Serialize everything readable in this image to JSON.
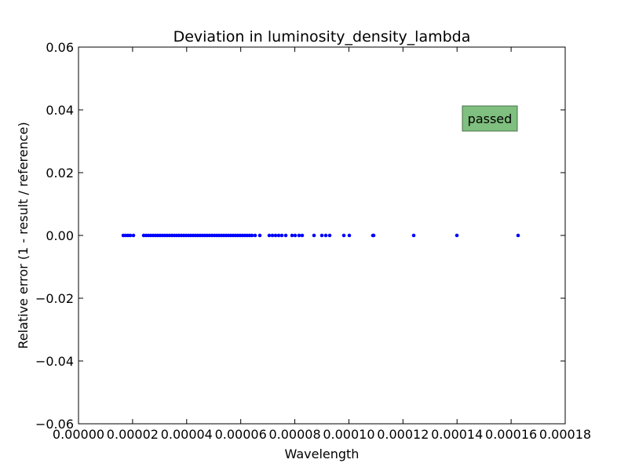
{
  "chart_data": {
    "type": "scatter",
    "title": "Deviation in luminosity_density_lambda",
    "xlabel": "Wavelength",
    "ylabel": "Relative error (1 - result / reference)",
    "xlim": [
      0,
      0.00018
    ],
    "ylim": [
      -0.06,
      0.06
    ],
    "xticks": [
      "0.00000",
      "0.00002",
      "0.00004",
      "0.00006",
      "0.00008",
      "0.00010",
      "0.00012",
      "0.00014",
      "0.00016",
      "0.00018"
    ],
    "xtick_values": [
      0,
      2e-05,
      4e-05,
      6e-05,
      8e-05,
      0.0001,
      0.00012,
      0.00014,
      0.00016,
      0.00018
    ],
    "yticks": [
      "−0.06",
      "−0.04",
      "−0.02",
      "0.00",
      "0.02",
      "0.04",
      "0.06"
    ],
    "ytick_values": [
      -0.06,
      -0.04,
      -0.02,
      0,
      0.02,
      0.04,
      0.06
    ],
    "grid": false,
    "marker_color": "#0000ff",
    "annotation": {
      "text": "passed",
      "color": "#7fbf7f",
      "x": 0.000148,
      "y": 0.037
    },
    "x": [
      1.655e-05,
      1.742e-05,
      1.829e-05,
      1.916e-05,
      2.032e-05,
      2.41e-05,
      2.497e-05,
      2.584e-05,
      2.671e-05,
      2.758e-05,
      2.845e-05,
      2.932e-05,
      3.019e-05,
      3.106e-05,
      3.194e-05,
      3.281e-05,
      3.368e-05,
      3.455e-05,
      3.542e-05,
      3.629e-05,
      3.716e-05,
      3.803e-05,
      3.89e-05,
      3.977e-05,
      4.065e-05,
      4.152e-05,
      4.239e-05,
      4.326e-05,
      4.413e-05,
      4.5e-05,
      4.587e-05,
      4.674e-05,
      4.761e-05,
      4.848e-05,
      4.935e-05,
      5.023e-05,
      5.11e-05,
      5.197e-05,
      5.284e-05,
      5.371e-05,
      5.458e-05,
      5.545e-05,
      5.632e-05,
      5.719e-05,
      5.806e-05,
      5.894e-05,
      5.981e-05,
      6.068e-05,
      6.155e-05,
      6.242e-05,
      6.329e-05,
      6.416e-05,
      6.532e-05,
      6.706e-05,
      7.055e-05,
      7.171e-05,
      7.287e-05,
      7.403e-05,
      7.519e-05,
      7.665e-05,
      7.897e-05,
      8.013e-05,
      8.158e-05,
      8.274e-05,
      8.71e-05,
      9e-05,
      9.145e-05,
      9.29e-05,
      9.813e-05,
      0.00010016,
      0.00010887,
      0.00010916,
      0.00012397,
      0.00013994,
      0.00016258
    ],
    "y": [
      0,
      0,
      0,
      0,
      0,
      0,
      0,
      0,
      0,
      0,
      0,
      0,
      0,
      0,
      0,
      0,
      0,
      0,
      0,
      0,
      0,
      0,
      0,
      0,
      0,
      0,
      0,
      0,
      0,
      0,
      0,
      0,
      0,
      0,
      0,
      0,
      0,
      0,
      0,
      0,
      0,
      0,
      0,
      0,
      0,
      0,
      0,
      0,
      0,
      0,
      0,
      0,
      0,
      0,
      0,
      0,
      0,
      0,
      0,
      0,
      0,
      0,
      0,
      0,
      0,
      0,
      0,
      0,
      0,
      0,
      0,
      0,
      0,
      0,
      0
    ]
  }
}
